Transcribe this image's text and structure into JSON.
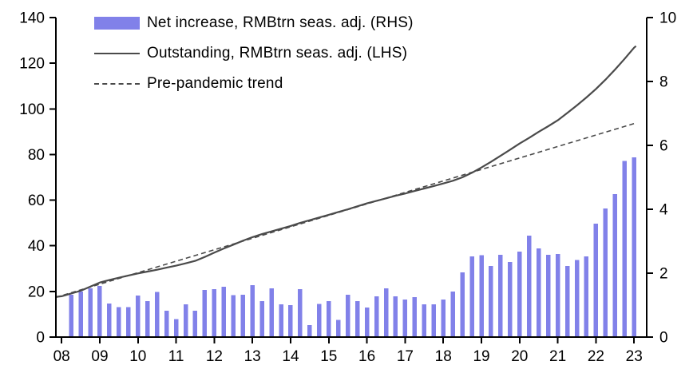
{
  "chart_data": {
    "type": "bar",
    "subtype": "bar-line-combo",
    "title": "",
    "grid": false,
    "legend_position": "top-left-inside",
    "x_axis": {
      "min": 2007.85,
      "max": 2023.33,
      "tick_values": [
        2008,
        2009,
        2010,
        2011,
        2012,
        2013,
        2014,
        2015,
        2016,
        2017,
        2018,
        2019,
        2020,
        2021,
        2022,
        2023
      ],
      "tick_labels": [
        "08",
        "09",
        "10",
        "11",
        "12",
        "13",
        "14",
        "15",
        "16",
        "17",
        "18",
        "19",
        "20",
        "21",
        "22",
        "23"
      ]
    },
    "left_axis": {
      "min": 0,
      "max": 140,
      "step": 20,
      "ticks": [
        0,
        20,
        40,
        60,
        80,
        100,
        120,
        140
      ]
    },
    "right_axis": {
      "min": 0,
      "max": 10,
      "step": 2,
      "ticks": [
        0,
        2,
        4,
        6,
        8,
        10
      ]
    },
    "colors": {
      "bar": "#8181e9",
      "line": "#4a4a4a",
      "axis": "#000000",
      "text": "#000000"
    },
    "series": [
      {
        "name": "Net increase, RMBtrn seas. adj. (RHS)",
        "type": "bar",
        "axis": "right",
        "color": "#8181e9",
        "x_start": 2008.25,
        "x_step": 0.25,
        "values": [
          1.32,
          1.42,
          1.52,
          1.6,
          1.05,
          0.94,
          0.94,
          1.3,
          1.12,
          1.41,
          0.82,
          0.56,
          1.02,
          0.83,
          1.47,
          1.5,
          1.57,
          1.31,
          1.33,
          1.62,
          1.12,
          1.52,
          1.02,
          1.0,
          1.5,
          0.37,
          1.04,
          1.12,
          0.54,
          1.32,
          1.12,
          0.93,
          1.28,
          1.52,
          1.28,
          1.18,
          1.25,
          1.03,
          1.02,
          1.18,
          1.42,
          2.03,
          2.52,
          2.56,
          2.23,
          2.57,
          2.35,
          2.67,
          3.18,
          2.77,
          2.58,
          2.6,
          2.22,
          2.41,
          2.53,
          3.55,
          4.03,
          4.47,
          5.51,
          5.62
        ]
      },
      {
        "name": "Outstanding, RMBtrn seas. adj. (LHS)",
        "type": "line",
        "axis": "left",
        "dash": false,
        "color": "#4a4a4a",
        "points": [
          [
            2007.85,
            17.6
          ],
          [
            2008,
            17.9
          ],
          [
            2008.25,
            19.1
          ],
          [
            2008.5,
            20.3
          ],
          [
            2008.75,
            22.1
          ],
          [
            2009,
            23.9
          ],
          [
            2009.25,
            25.0
          ],
          [
            2009.5,
            26.0
          ],
          [
            2009.75,
            27.0
          ],
          [
            2010,
            27.9
          ],
          [
            2010.25,
            28.7
          ],
          [
            2010.5,
            29.5
          ],
          [
            2010.75,
            30.4
          ],
          [
            2011,
            31.3
          ],
          [
            2011.25,
            32.3
          ],
          [
            2011.5,
            33.4
          ],
          [
            2011.75,
            35.1
          ],
          [
            2012,
            37.0
          ],
          [
            2012.25,
            38.8
          ],
          [
            2012.5,
            40.5
          ],
          [
            2012.75,
            42.2
          ],
          [
            2013,
            43.8
          ],
          [
            2013.25,
            45.1
          ],
          [
            2013.5,
            46.3
          ],
          [
            2013.75,
            47.5
          ],
          [
            2014,
            48.7
          ],
          [
            2014.25,
            50.0
          ],
          [
            2014.5,
            51.2
          ],
          [
            2014.75,
            52.4
          ],
          [
            2015,
            53.6
          ],
          [
            2015.25,
            54.8
          ],
          [
            2015.5,
            56.0
          ],
          [
            2015.75,
            57.3
          ],
          [
            2016,
            58.6
          ],
          [
            2016.25,
            59.7
          ],
          [
            2016.5,
            60.8
          ],
          [
            2016.75,
            61.9
          ],
          [
            2017,
            62.9
          ],
          [
            2017.25,
            64.0
          ],
          [
            2017.5,
            65.1
          ],
          [
            2017.75,
            66.2
          ],
          [
            2018,
            67.3
          ],
          [
            2018.25,
            68.5
          ],
          [
            2018.5,
            70.0
          ],
          [
            2018.75,
            72.0
          ],
          [
            2019,
            74.3
          ],
          [
            2019.25,
            76.8
          ],
          [
            2019.5,
            79.4
          ],
          [
            2019.75,
            82.1
          ],
          [
            2020,
            84.8
          ],
          [
            2020.25,
            87.3
          ],
          [
            2020.5,
            89.9
          ],
          [
            2020.75,
            92.4
          ],
          [
            2021,
            95.0
          ],
          [
            2021.25,
            98.2
          ],
          [
            2021.5,
            101.5
          ],
          [
            2021.75,
            105.0
          ],
          [
            2022,
            108.7
          ],
          [
            2022.25,
            112.8
          ],
          [
            2022.5,
            117.2
          ],
          [
            2022.75,
            121.9
          ],
          [
            2023,
            126.8
          ],
          [
            2023.05,
            127.5
          ]
        ]
      },
      {
        "name": "Pre-pandemic trend",
        "type": "line",
        "axis": "left",
        "dash": true,
        "color": "#4a4a4a",
        "points": [
          [
            2007.85,
            17.4
          ],
          [
            2023.05,
            93.8
          ]
        ]
      }
    ]
  }
}
